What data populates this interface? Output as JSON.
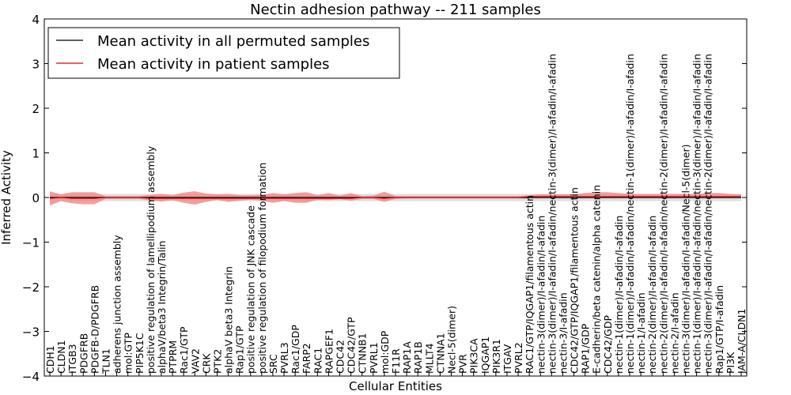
{
  "chart_data": {
    "type": "line",
    "title": "Nectin adhesion pathway -- 211 samples",
    "xlabel": "Cellular Entities",
    "ylabel": "Inferred Activity",
    "ylim": [
      -4,
      4
    ],
    "yticks": [
      -4,
      -3,
      -2,
      -1,
      0,
      1,
      2,
      3,
      4
    ],
    "ytick_labels": [
      "−4",
      "−3",
      "−2",
      "−1",
      "0",
      "1",
      "2",
      "3",
      "4"
    ],
    "legend_position": "top-left",
    "categories": [
      "CDH1",
      "CLDN1",
      "ITGB3",
      "PDGFRB",
      "PDGFB-D/PDGFRB",
      "TLN1",
      "adherens junction assembly",
      "mol:GTP",
      "PIP5K1C",
      "positive regulation of lamellipodium assembly",
      "alphaV/beta3 Integrin/Talin",
      "PTPRM",
      "Rac1/GTP",
      "VAV2",
      "CRK",
      "PTK2",
      "alphaV beta3 Integrin",
      "Rap1/GTP",
      "positive regulation of JNK cascade",
      "positive regulation of filopodium formation",
      "SRC",
      "PVRL3",
      "Rac1/GDP",
      "FARP2",
      "RAC1",
      "RAPGEF1",
      "CDC42",
      "CDC42/GTP",
      "CTNNB1",
      "PVRL1",
      "mol:GDP",
      "F11R",
      "RAP1A",
      "RAP1B",
      "MLLT4",
      "CTNNA1",
      "Necl-5(dimer)",
      "PVR",
      "PIK3CA",
      "IQGAP1",
      "PIK3R1",
      "ITGAV",
      "PVRL2",
      "RAC1/GTP/IQGAP1/filamentous actin",
      "nectin-3(dimer)/I-afadin/I-afadin",
      "nectin-3(dimer)/I-afadin/I-afadin/nectin-3(dimer)/I-afadin/I-afadin",
      "nectin-3/I-afadin",
      "CDC42/GTP/IQGAP1/filamentous actin",
      "RAP1/GDP",
      "E-cadherin/beta catenin/alpha catenin",
      "CDC42/GDP",
      "nectin-1(dimer)/I-afadin/I-afadin",
      "nectin-1(dimer)/I-afadin/I-afadin/nectin-1(dimer)/I-afadin/I-afadin",
      "nectin-1/I-afadin",
      "nectin-2(dimer)/I-afadin/I-afadin",
      "nectin-2(dimer)/I-afadin/I-afadin/nectin-2(dimer)/I-afadin/I-afadin",
      "nectin-2/I-afadin",
      "nectin-3(dimer)/I-afadin/I-afadin/Necl-5(dimer)",
      "nectin-1(dimer)/I-afadin/I-afadin/nectin-3(dimer)/I-afadin/I-afadin",
      "nectin-3(dimer)/I-afadin/I-afadin/nectin-2(dimer)/I-afadin/I-afadin",
      "Rap1/GTP/I-afadin",
      "PI3K",
      "JAM-A/CLDN1"
    ],
    "series": [
      {
        "name": "Mean activity in all permuted samples",
        "color": "#000000",
        "values": [
          0,
          0,
          0,
          0,
          0,
          0,
          0,
          0,
          0,
          0,
          0,
          0,
          0,
          0,
          0,
          0,
          0,
          0,
          0,
          0,
          0,
          0,
          0,
          0,
          0,
          0,
          0,
          0,
          0,
          0,
          0,
          0,
          0,
          0,
          0,
          0,
          0,
          0,
          0,
          0,
          0,
          0,
          0,
          0,
          0,
          0,
          0,
          0,
          0,
          0,
          0,
          0,
          0,
          0,
          0,
          0,
          0,
          0,
          0,
          0,
          0,
          0,
          0
        ],
        "band_lower": [
          -0.08,
          -0.08,
          -0.08,
          -0.08,
          -0.08,
          -0.08,
          -0.08,
          -0.08,
          -0.08,
          -0.08,
          -0.08,
          -0.08,
          -0.08,
          -0.08,
          -0.08,
          -0.08,
          -0.08,
          -0.08,
          -0.08,
          -0.08,
          -0.08,
          -0.08,
          -0.08,
          -0.08,
          -0.08,
          -0.08,
          -0.08,
          -0.08,
          -0.08,
          -0.08,
          -0.08,
          -0.08,
          -0.08,
          -0.08,
          -0.08,
          -0.08,
          -0.08,
          -0.08,
          -0.08,
          -0.08,
          -0.08,
          -0.08,
          -0.08,
          -0.08,
          -0.08,
          -0.08,
          -0.08,
          -0.08,
          -0.08,
          -0.08,
          -0.08,
          -0.08,
          -0.08,
          -0.08,
          -0.08,
          -0.08,
          -0.08,
          -0.08,
          -0.08,
          -0.08,
          -0.08,
          -0.08,
          -0.08
        ],
        "band_upper": [
          0.08,
          0.08,
          0.08,
          0.08,
          0.08,
          0.08,
          0.08,
          0.08,
          0.08,
          0.08,
          0.08,
          0.08,
          0.08,
          0.08,
          0.08,
          0.08,
          0.08,
          0.08,
          0.08,
          0.08,
          0.08,
          0.08,
          0.08,
          0.08,
          0.08,
          0.08,
          0.08,
          0.08,
          0.08,
          0.08,
          0.08,
          0.08,
          0.08,
          0.08,
          0.08,
          0.08,
          0.08,
          0.08,
          0.08,
          0.08,
          0.08,
          0.08,
          0.08,
          0.08,
          0.08,
          0.08,
          0.08,
          0.08,
          0.08,
          0.08,
          0.08,
          0.08,
          0.08,
          0.08,
          0.08,
          0.08,
          0.08,
          0.08,
          0.08,
          0.08,
          0.08,
          0.08,
          0.08
        ]
      },
      {
        "name": "Mean activity in patient samples",
        "color": "#e00000",
        "band_color": "#f08080",
        "values": [
          -0.02,
          0.0,
          -0.02,
          -0.02,
          -0.02,
          0.0,
          0.0,
          0.0,
          0.0,
          -0.02,
          -0.02,
          -0.02,
          -0.02,
          -0.02,
          -0.02,
          -0.02,
          -0.02,
          -0.02,
          -0.02,
          -0.02,
          -0.02,
          -0.02,
          -0.02,
          -0.02,
          -0.02,
          -0.02,
          -0.02,
          -0.02,
          0.0,
          0.0,
          -0.02,
          0.0,
          0.0,
          0.0,
          0.0,
          0.0,
          0.0,
          0.0,
          0.0,
          0.0,
          0.0,
          0.0,
          0.0,
          0.02,
          0.02,
          0.02,
          0.02,
          0.02,
          0.02,
          0.02,
          0.02,
          0.02,
          0.02,
          0.02,
          0.02,
          0.02,
          0.02,
          0.02,
          0.02,
          0.02,
          0.02,
          0.02,
          0.02
        ],
        "band_lower": [
          -0.18,
          -0.08,
          -0.13,
          -0.15,
          -0.15,
          -0.03,
          -0.03,
          -0.03,
          -0.03,
          -0.07,
          -0.09,
          -0.06,
          -0.12,
          -0.16,
          -0.1,
          -0.05,
          -0.1,
          -0.07,
          -0.05,
          -0.07,
          -0.12,
          -0.08,
          -0.12,
          -0.12,
          -0.05,
          -0.06,
          -0.04,
          -0.07,
          -0.03,
          -0.03,
          -0.1,
          -0.03,
          -0.02,
          -0.02,
          -0.02,
          -0.02,
          -0.02,
          -0.02,
          -0.02,
          -0.02,
          -0.02,
          -0.02,
          -0.02,
          -0.02,
          -0.01,
          -0.01,
          -0.01,
          -0.01,
          -0.01,
          -0.01,
          -0.01,
          -0.01,
          -0.01,
          -0.01,
          -0.01,
          -0.01,
          -0.01,
          -0.01,
          -0.01,
          -0.01,
          -0.01,
          -0.01,
          -0.01
        ],
        "band_upper": [
          0.14,
          0.07,
          0.12,
          0.12,
          0.12,
          0.03,
          0.03,
          0.03,
          0.03,
          0.06,
          0.08,
          0.05,
          0.11,
          0.14,
          0.09,
          0.07,
          0.08,
          0.05,
          0.05,
          0.06,
          0.1,
          0.07,
          0.1,
          0.12,
          0.05,
          0.1,
          0.04,
          0.1,
          0.03,
          0.04,
          0.13,
          0.03,
          0.03,
          0.03,
          0.03,
          0.03,
          0.03,
          0.03,
          0.03,
          0.03,
          0.03,
          0.03,
          0.03,
          0.05,
          0.07,
          0.07,
          0.07,
          0.07,
          0.1,
          0.12,
          0.12,
          0.1,
          0.08,
          0.08,
          0.08,
          0.08,
          0.08,
          0.08,
          0.08,
          0.1,
          0.1,
          0.08,
          0.07
        ]
      }
    ]
  }
}
